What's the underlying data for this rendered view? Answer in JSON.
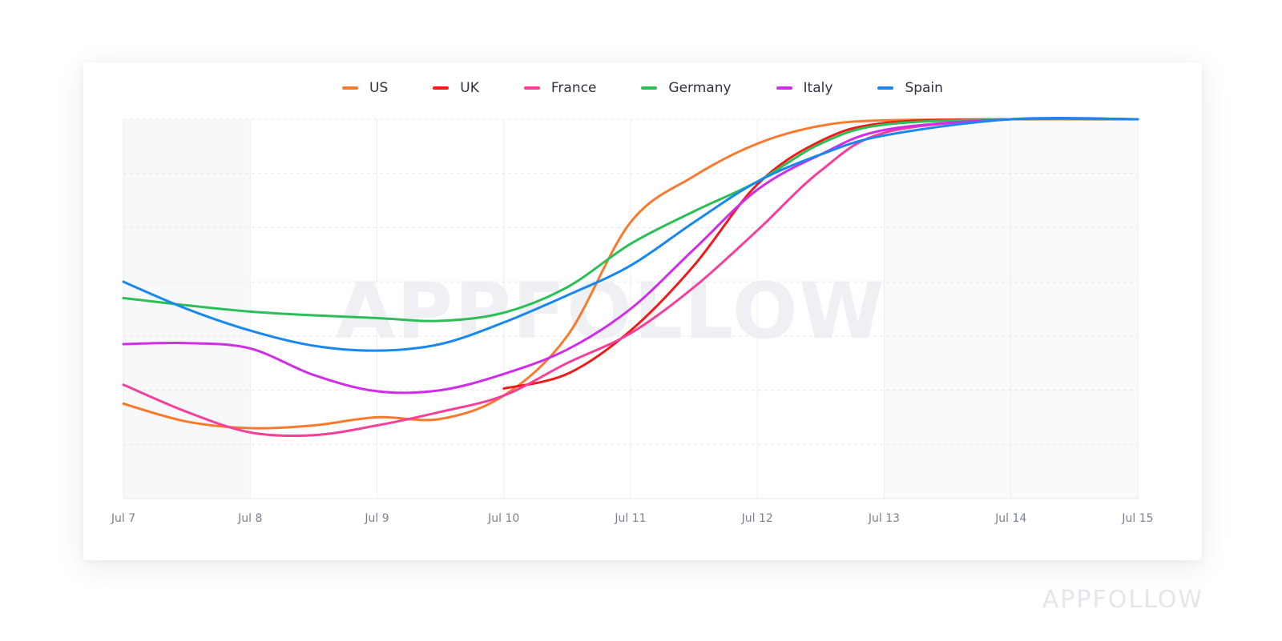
{
  "brand": {
    "footer_logo_text": "APPFOLLOW",
    "watermark_text": "APPFOLLOW"
  },
  "chart_data": {
    "type": "line",
    "title": "",
    "xlabel": "",
    "ylabel": "",
    "categories": [
      "Jul 7",
      "Jul 8",
      "Jul 9",
      "Jul 10",
      "Jul 11",
      "Jul 12",
      "Jul 13",
      "Jul 14",
      "Jul 15"
    ],
    "x_range": [
      0,
      8
    ],
    "y_range": [
      0,
      7
    ],
    "y_tick_labels_shown": false,
    "grid": true,
    "legend_position": "top-center",
    "series": [
      {
        "name": "US",
        "color": "#f97a2d",
        "points": [
          [
            0,
            1.75
          ],
          [
            0.5,
            1.42
          ],
          [
            1,
            1.3
          ],
          [
            1.5,
            1.35
          ],
          [
            2,
            1.5
          ],
          [
            2.5,
            1.47
          ],
          [
            3,
            1.9
          ],
          [
            3.5,
            3.0
          ],
          [
            4,
            5.1
          ],
          [
            4.5,
            5.95
          ],
          [
            5,
            6.55
          ],
          [
            5.5,
            6.88
          ],
          [
            6,
            6.98
          ],
          [
            7,
            7.0
          ],
          [
            8,
            7.0
          ]
        ]
      },
      {
        "name": "UK",
        "color": "#ef1a1a",
        "points": [
          [
            3,
            2.03
          ],
          [
            3.5,
            2.3
          ],
          [
            4,
            3.1
          ],
          [
            4.5,
            4.3
          ],
          [
            5,
            5.8
          ],
          [
            5.5,
            6.6
          ],
          [
            6,
            6.93
          ],
          [
            7,
            7.0
          ],
          [
            8,
            7.0
          ]
        ]
      },
      {
        "name": "France",
        "color": "#f4409a",
        "points": [
          [
            0,
            2.1
          ],
          [
            0.5,
            1.6
          ],
          [
            1,
            1.22
          ],
          [
            1.5,
            1.17
          ],
          [
            2,
            1.35
          ],
          [
            2.5,
            1.6
          ],
          [
            3,
            1.9
          ],
          [
            3.5,
            2.5
          ],
          [
            4,
            3.05
          ],
          [
            4.5,
            3.9
          ],
          [
            5,
            4.95
          ],
          [
            5.5,
            6.05
          ],
          [
            6,
            6.75
          ],
          [
            7,
            7.0
          ],
          [
            8,
            7.0
          ]
        ]
      },
      {
        "name": "Germany",
        "color": "#2cbf57",
        "points": [
          [
            0,
            3.7
          ],
          [
            1,
            3.45
          ],
          [
            2,
            3.33
          ],
          [
            2.5,
            3.28
          ],
          [
            3,
            3.43
          ],
          [
            3.5,
            3.9
          ],
          [
            4,
            4.7
          ],
          [
            4.5,
            5.3
          ],
          [
            5,
            5.85
          ],
          [
            5.5,
            6.55
          ],
          [
            6,
            6.9
          ],
          [
            7,
            7.0
          ],
          [
            8,
            7.0
          ]
        ]
      },
      {
        "name": "Italy",
        "color": "#cf2de8",
        "points": [
          [
            0,
            2.85
          ],
          [
            0.5,
            2.87
          ],
          [
            1,
            2.77
          ],
          [
            1.5,
            2.28
          ],
          [
            2,
            1.98
          ],
          [
            2.5,
            2.0
          ],
          [
            3,
            2.3
          ],
          [
            3.5,
            2.75
          ],
          [
            4,
            3.5
          ],
          [
            4.5,
            4.6
          ],
          [
            5,
            5.7
          ],
          [
            5.5,
            6.35
          ],
          [
            6,
            6.8
          ],
          [
            7,
            7.0
          ],
          [
            8,
            7.0
          ]
        ]
      },
      {
        "name": "Spain",
        "color": "#1888f0",
        "points": [
          [
            0,
            4.0
          ],
          [
            0.5,
            3.5
          ],
          [
            1,
            3.1
          ],
          [
            1.5,
            2.82
          ],
          [
            2,
            2.73
          ],
          [
            2.5,
            2.85
          ],
          [
            3,
            3.25
          ],
          [
            3.5,
            3.75
          ],
          [
            4,
            4.3
          ],
          [
            4.5,
            5.1
          ],
          [
            5,
            5.85
          ],
          [
            5.5,
            6.35
          ],
          [
            6,
            6.7
          ],
          [
            7,
            7.0
          ],
          [
            8,
            7.0
          ]
        ]
      }
    ]
  }
}
